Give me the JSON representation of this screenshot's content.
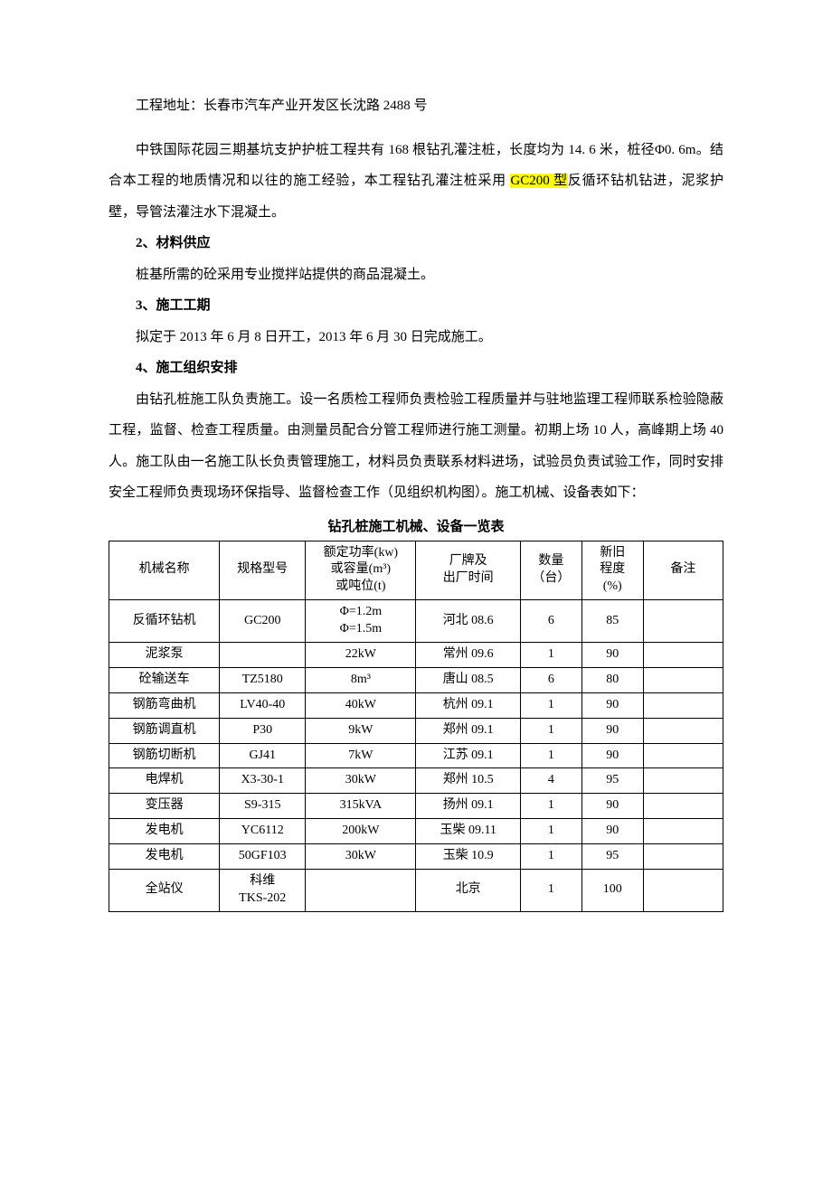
{
  "colors": {
    "page_bg": "#ffffff",
    "text": "#000000",
    "highlight_bg": "#ffff00",
    "table_border": "#000000"
  },
  "typography": {
    "body_font": "SimSun",
    "body_size_pt": 11,
    "line_height": 2.3,
    "heading_weight": "bold"
  },
  "address_line": "工程地址：长春市汽车产业开发区长沈路 2488 号",
  "intro_pre": "中铁国际花园三期基坑支护护桩工程共有 168 根钻孔灌注桩，长度均为 14. 6 米，桩径Φ0. 6m。结合本工程的地质情况和以往的施工经验，本工程钻孔灌注桩采用 ",
  "intro_highlight": "GC200 型",
  "intro_post": "反循环钻机钻进，泥浆护壁，导管法灌注水下混凝土。",
  "sections": {
    "s2": {
      "heading": "2、材料供应",
      "body": "桩基所需的砼采用专业搅拌站提供的商品混凝土。"
    },
    "s3": {
      "heading": "3、施工工期",
      "body": "拟定于 2013 年 6 月 8 日开工，2013 年 6 月 30 日完成施工。"
    },
    "s4": {
      "heading": "4、施工组织安排",
      "body": "由钻孔桩施工队负责施工。设一名质检工程师负责检验工程质量并与驻地监理工程师联系检验隐蔽工程，监督、检查工程质量。由测量员配合分管工程师进行施工测量。初期上场 10 人，高峰期上场 40 人。施工队由一名施工队长负责管理施工，材料员负责联系材料进场，试验员负责试验工作，同时安排安全工程师负责现场环保指导、监督检查工作（见组织机构图）。施工机械、设备表如下："
    }
  },
  "table": {
    "title": "钻孔桩施工机械、设备一览表",
    "columns": [
      "机械名称",
      "规格型号",
      "额定功率(kw)\n或容量(m³)\n或吨位(t)",
      "厂牌及\n出厂时间",
      "数量\n（台）",
      "新旧\n程度\n(%)",
      "备注"
    ],
    "column_widths_pct": [
      18,
      14,
      18,
      17,
      10,
      10,
      13
    ],
    "rows": [
      [
        "反循环钻机",
        "GC200",
        "Φ=1.2m\nΦ=1.5m",
        "河北 08.6",
        "6",
        "85",
        ""
      ],
      [
        "泥浆泵",
        "",
        "22kW",
        "常州 09.6",
        "1",
        "90",
        ""
      ],
      [
        "砼输送车",
        "TZ5180",
        "8m³",
        "唐山 08.5",
        "6",
        "80",
        ""
      ],
      [
        "钢筋弯曲机",
        "LV40-40",
        "40kW",
        "杭州 09.1",
        "1",
        "90",
        ""
      ],
      [
        "钢筋调直机",
        "P30",
        "9kW",
        "郑州 09.1",
        "1",
        "90",
        ""
      ],
      [
        "钢筋切断机",
        "GJ41",
        "7kW",
        "江苏 09.1",
        "1",
        "90",
        ""
      ],
      [
        "电焊机",
        "X3-30-1",
        "30kW",
        "郑州 10.5",
        "4",
        "95",
        ""
      ],
      [
        "变压器",
        "S9-315",
        "315kVA",
        "扬州 09.1",
        "1",
        "90",
        ""
      ],
      [
        "发电机",
        "YC6112",
        "200kW",
        "玉柴 09.11",
        "1",
        "90",
        ""
      ],
      [
        "发电机",
        "50GF103",
        "30kW",
        "玉柴 10.9",
        "1",
        "95",
        ""
      ],
      [
        "全站仪",
        "科维\nTKS-202",
        "",
        "北京",
        "1",
        "100",
        ""
      ]
    ]
  }
}
